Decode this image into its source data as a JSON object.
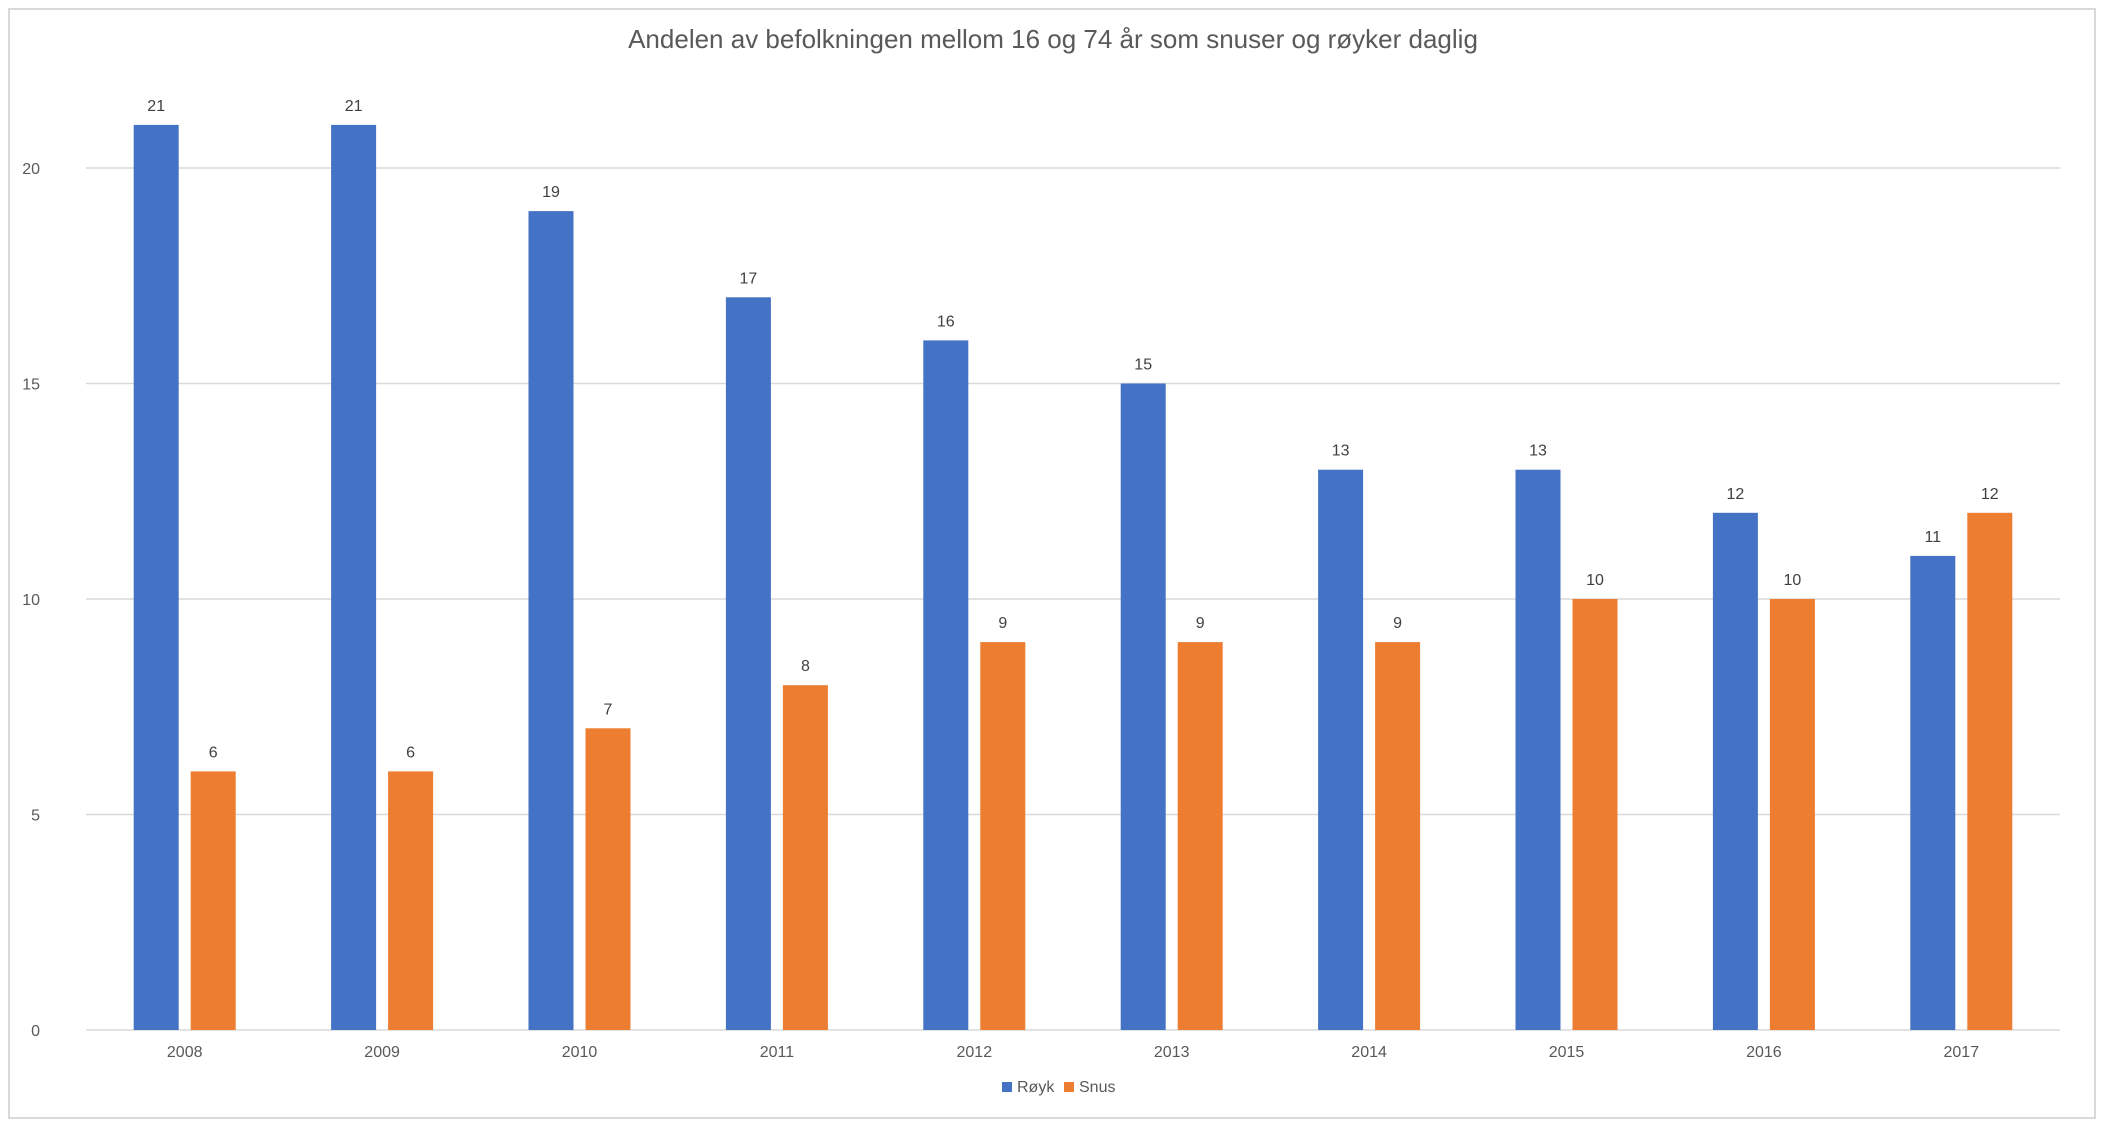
{
  "chart_data": {
    "type": "bar",
    "title": "Andelen av befolkningen mellom 16 og 74 år som snuser og røyker daglig",
    "xlabel": "",
    "ylabel": "",
    "categories": [
      "2008",
      "2009",
      "2010",
      "2011",
      "2012",
      "2013",
      "2014",
      "2015",
      "2016",
      "2017"
    ],
    "series": [
      {
        "name": "Røyk",
        "color": "#4472C4",
        "values": [
          21,
          21,
          19,
          17,
          16,
          15,
          13,
          13,
          12,
          11
        ]
      },
      {
        "name": "Snus",
        "color": "#ED7D31",
        "values": [
          6,
          6,
          7,
          8,
          9,
          9,
          9,
          10,
          10,
          12
        ]
      }
    ],
    "ylim": [
      0,
      20
    ],
    "yticks": [
      "0",
      "5",
      "10",
      "15",
      "20"
    ],
    "grid": true,
    "legend": "bottom-center",
    "data_labels": true
  }
}
